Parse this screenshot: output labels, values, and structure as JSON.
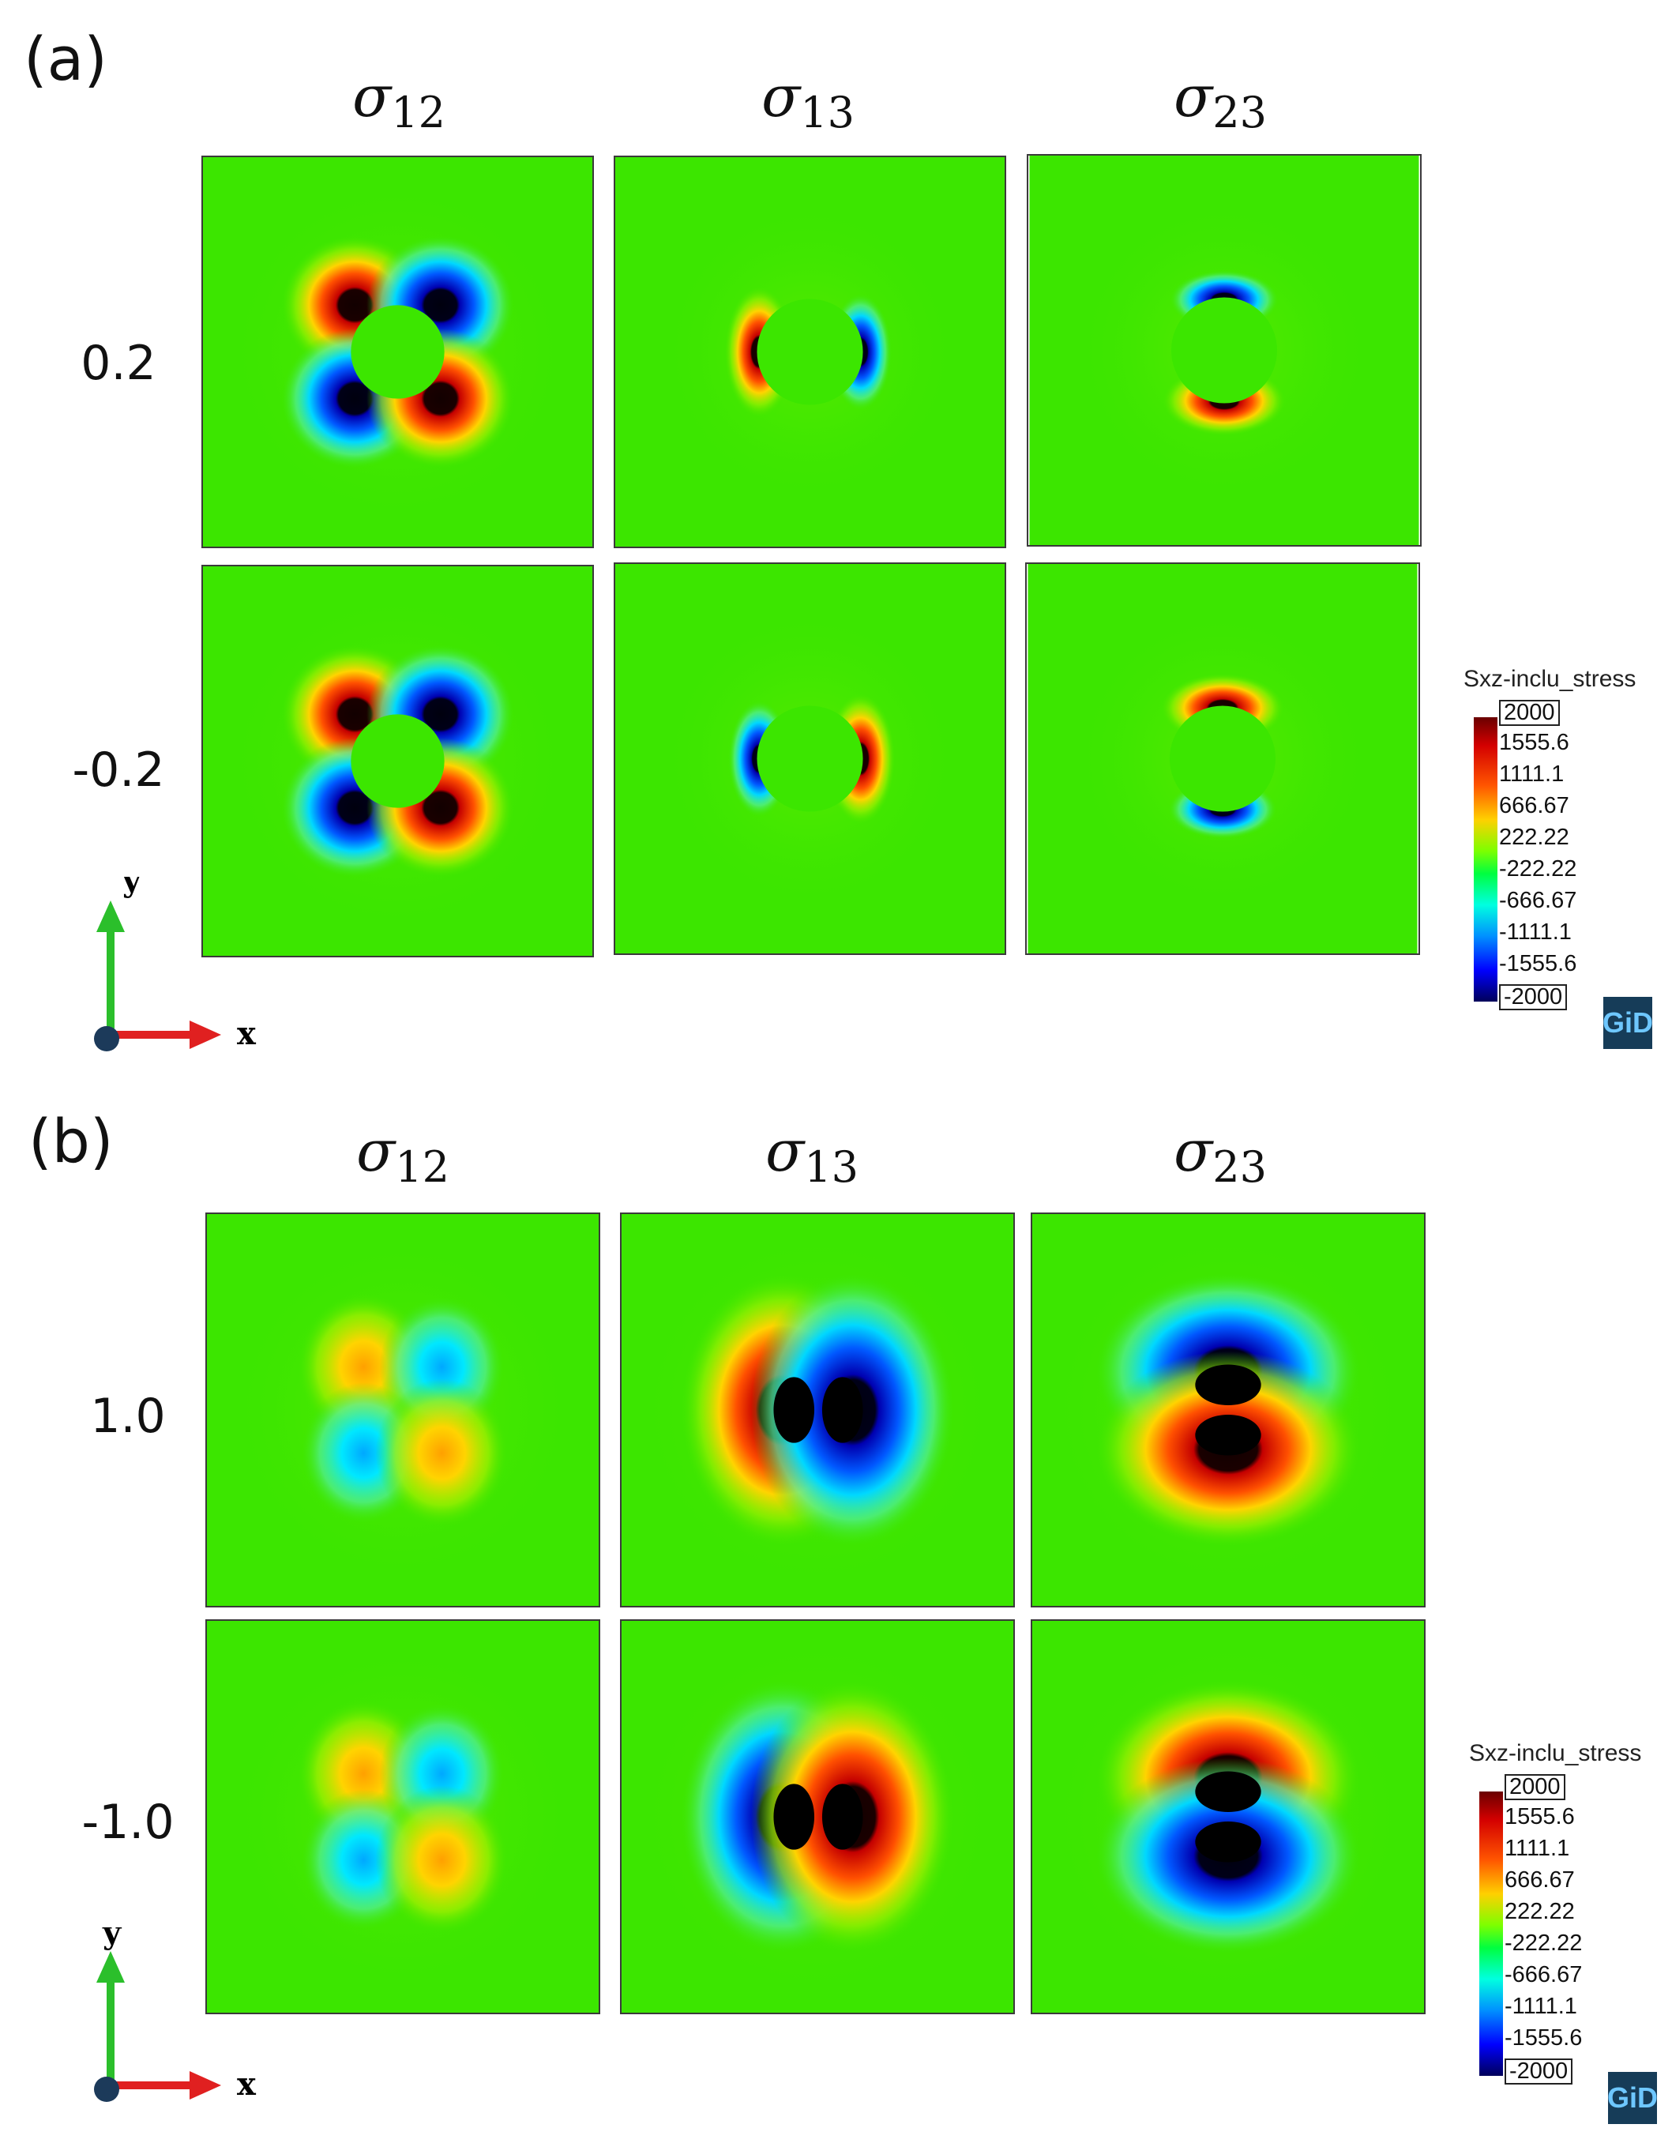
{
  "panel_a": {
    "label": "(a)",
    "columns": [
      {
        "sym": "σ",
        "sub": "12"
      },
      {
        "sym": "σ",
        "sub": "13"
      },
      {
        "sym": "σ",
        "sub": "23"
      }
    ],
    "rows": [
      "0.2",
      "-0.2"
    ],
    "legend": {
      "title": "Sxz-inclu_stress",
      "ticks": [
        "2000",
        "1555.6",
        "1111.1",
        "666.67",
        "222.22",
        "-222.22",
        "-666.67",
        "-1111.1",
        "-1555.6",
        "-2000"
      ]
    },
    "logo": "GiD",
    "axis": {
      "y": "y",
      "x": "x"
    }
  },
  "panel_b": {
    "label": "(b)",
    "columns": [
      {
        "sym": "σ",
        "sub": "12"
      },
      {
        "sym": "σ",
        "sub": "13"
      },
      {
        "sym": "σ",
        "sub": "23"
      }
    ],
    "rows": [
      "1.0",
      "-1.0"
    ],
    "legend": {
      "title": "Sxz-inclu_stress",
      "ticks": [
        "2000",
        "1555.6",
        "1111.1",
        "666.67",
        "222.22",
        "-222.22",
        "-666.67",
        "-1111.1",
        "-1555.6",
        "-2000"
      ]
    },
    "logo": "GiD",
    "axis": {
      "y": "y",
      "x": "x"
    }
  },
  "colors": {
    "background_field": "#3ce600",
    "max": "#6a0000",
    "min": "#00005a"
  }
}
